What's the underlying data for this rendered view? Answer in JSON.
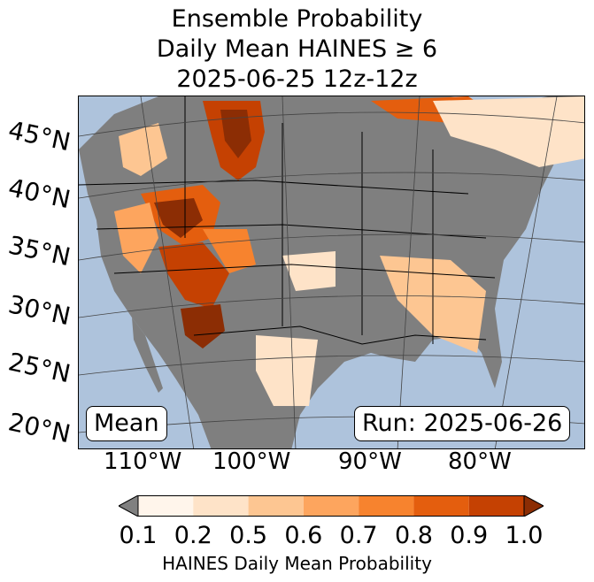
{
  "title": {
    "line1": "Ensemble Probability",
    "line2": "Daily Mean HAINES ≥ 6",
    "line3": "2025-06-25 12z-12z"
  },
  "map": {
    "lat_labels": [
      "45°N",
      "40°N",
      "35°N",
      "30°N",
      "25°N",
      "20°N"
    ],
    "lon_labels": [
      "110°W",
      "100°W",
      "90°W",
      "80°W"
    ],
    "mean_label": "Mean",
    "run_label": "Run: 2025-06-26",
    "ocean_color": "#aec3dc",
    "land_color": "#7f7f7f"
  },
  "colorbar": {
    "ticks": [
      "0.1",
      "0.2",
      "0.5",
      "0.6",
      "0.7",
      "0.8",
      "0.9",
      "1.0"
    ],
    "colors": [
      "#fff5eb",
      "#fee3c8",
      "#fdc692",
      "#fda55e",
      "#f7832e",
      "#e45e0e",
      "#c54102",
      "#8c2d04"
    ],
    "under_color": "#808080",
    "label": "HAINES Daily Mean Probability"
  }
}
